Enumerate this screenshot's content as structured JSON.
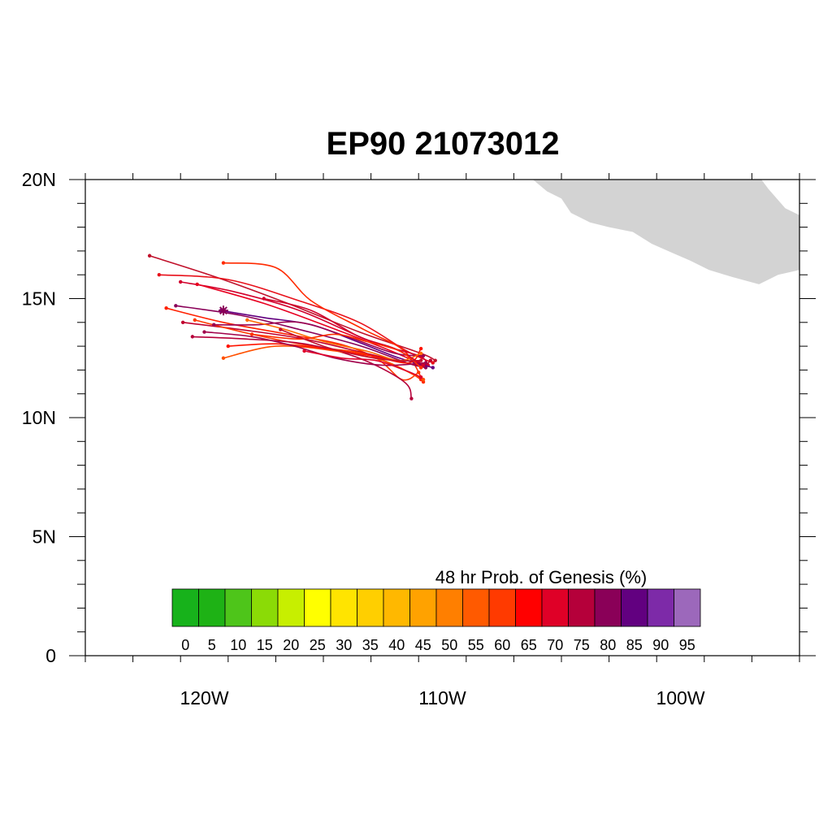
{
  "title": "EP90 21073012",
  "map": {
    "lon_range": [
      -125,
      -95
    ],
    "lat_range": [
      0,
      20
    ],
    "lon_ticks": [
      {
        "value": -120,
        "label": "120W"
      },
      {
        "value": -110,
        "label": "110W"
      },
      {
        "value": -100,
        "label": "100W"
      }
    ],
    "lat_ticks": [
      {
        "value": 0,
        "label": "0"
      },
      {
        "value": 5,
        "label": "5N"
      },
      {
        "value": 10,
        "label": "10N"
      },
      {
        "value": 15,
        "label": "15N"
      },
      {
        "value": 20,
        "label": "20N"
      }
    ],
    "land_color": "#d3d3d3",
    "land_outline": [
      [
        -106.2,
        20.0
      ],
      [
        -105.6,
        19.5
      ],
      [
        -105.0,
        19.2
      ],
      [
        -104.6,
        18.6
      ],
      [
        -103.8,
        18.2
      ],
      [
        -103.0,
        18.0
      ],
      [
        -102.0,
        17.8
      ],
      [
        -101.2,
        17.3
      ],
      [
        -100.3,
        16.9
      ],
      [
        -99.6,
        16.6
      ],
      [
        -98.8,
        16.2
      ],
      [
        -97.8,
        15.9
      ],
      [
        -96.7,
        15.6
      ],
      [
        -95.9,
        16.0
      ],
      [
        -95.0,
        16.2
      ],
      [
        -95.0,
        18.5
      ],
      [
        -95.6,
        18.8
      ],
      [
        -96.3,
        19.6
      ],
      [
        -96.6,
        20.0
      ]
    ],
    "genesis_center": {
      "lon": -119.2,
      "lat": 14.5
    }
  },
  "colorbar": {
    "title": "48 hr Prob. of Genesis (%)",
    "labels": [
      "0",
      "5",
      "10",
      "15",
      "20",
      "25",
      "30",
      "35",
      "40",
      "45",
      "50",
      "55",
      "60",
      "65",
      "70",
      "75",
      "80",
      "85",
      "90",
      "95"
    ],
    "colors": [
      "#17b21b",
      "#1eb215",
      "#4ec51a",
      "#8bdb06",
      "#c7ef00",
      "#ffff00",
      "#ffe400",
      "#ffcf00",
      "#ffb800",
      "#ffa200",
      "#ff7f00",
      "#ff5a00",
      "#ff3a00",
      "#ff0000",
      "#df0027",
      "#b5003a",
      "#8a0058",
      "#620080",
      "#7d2aa8",
      "#9c68bb"
    ]
  },
  "tracks": [
    {
      "color": "#c0102a",
      "points": [
        [
          -122.3,
          16.8
        ],
        [
          -119.5,
          15.9
        ],
        [
          -116.5,
          14.8
        ],
        [
          -113.5,
          13.6
        ],
        [
          -110.9,
          12.7
        ],
        [
          -110.3,
          12.4
        ]
      ]
    },
    {
      "color": "#e8101a",
      "points": [
        [
          -121.9,
          16.0
        ],
        [
          -119.0,
          15.8
        ],
        [
          -116.0,
          14.9
        ],
        [
          -113.5,
          14.0
        ],
        [
          -111.5,
          12.8
        ],
        [
          -110.4,
          12.3
        ]
      ]
    },
    {
      "color": "#ff2a00",
      "points": [
        [
          -119.2,
          16.5
        ],
        [
          -117.0,
          16.3
        ],
        [
          -115.5,
          14.9
        ],
        [
          -113.3,
          13.7
        ],
        [
          -111.6,
          12.8
        ],
        [
          -110.8,
          11.5
        ]
      ]
    },
    {
      "color": "#d2002c",
      "points": [
        [
          -121.0,
          15.7
        ],
        [
          -118.8,
          15.3
        ],
        [
          -116.0,
          14.5
        ],
        [
          -113.0,
          13.2
        ],
        [
          -111.0,
          12.6
        ],
        [
          -110.6,
          12.2
        ]
      ]
    },
    {
      "color": "#e80020",
      "points": [
        [
          -120.3,
          15.6
        ],
        [
          -117.5,
          14.8
        ],
        [
          -115.0,
          13.9
        ],
        [
          -112.4,
          12.9
        ],
        [
          -111.0,
          12.3
        ]
      ]
    },
    {
      "color": "#8a0058",
      "points": [
        [
          -121.2,
          14.7
        ],
        [
          -118.5,
          14.3
        ],
        [
          -116.0,
          13.7
        ],
        [
          -113.4,
          13.0
        ],
        [
          -111.5,
          12.3
        ],
        [
          -110.7,
          12.1
        ]
      ]
    },
    {
      "color": "#ff2000",
      "points": [
        [
          -121.6,
          14.6
        ],
        [
          -119.2,
          14.0
        ],
        [
          -116.5,
          13.5
        ],
        [
          -114.0,
          13.0
        ],
        [
          -111.6,
          12.0
        ],
        [
          -110.9,
          11.6
        ]
      ]
    },
    {
      "color": "#c0002e",
      "points": [
        [
          -120.9,
          14.0
        ],
        [
          -118.5,
          13.7
        ],
        [
          -115.8,
          13.3
        ],
        [
          -113.2,
          12.7
        ],
        [
          -111.0,
          12.2
        ],
        [
          -110.5,
          12.4
        ]
      ]
    },
    {
      "color": "#ff3a00",
      "points": [
        [
          -120.4,
          14.1
        ],
        [
          -118.0,
          13.5
        ],
        [
          -115.5,
          13.0
        ],
        [
          -113.0,
          12.6
        ],
        [
          -111.7,
          11.6
        ],
        [
          -111.0,
          11.9
        ]
      ]
    },
    {
      "color": "#b5003a",
      "points": [
        [
          -120.5,
          13.4
        ],
        [
          -118.2,
          13.3
        ],
        [
          -115.8,
          13.1
        ],
        [
          -113.5,
          12.5
        ],
        [
          -111.6,
          11.5
        ],
        [
          -111.3,
          10.8
        ]
      ]
    },
    {
      "color": "#ff5000",
      "points": [
        [
          -119.2,
          12.5
        ],
        [
          -117.0,
          13.0
        ],
        [
          -114.5,
          12.8
        ],
        [
          -112.5,
          12.4
        ],
        [
          -111.2,
          11.8
        ],
        [
          -110.8,
          11.6
        ]
      ]
    },
    {
      "color": "#620080",
      "points": [
        [
          -119.3,
          14.5
        ],
        [
          -117.5,
          14.2
        ],
        [
          -115.5,
          13.9
        ],
        [
          -113.6,
          13.2
        ],
        [
          -111.8,
          12.5
        ],
        [
          -110.4,
          12.1
        ]
      ]
    },
    {
      "color": "#9b0050",
      "points": [
        [
          -119.6,
          13.9
        ],
        [
          -117.8,
          13.9
        ],
        [
          -116.0,
          14.0
        ],
        [
          -114.0,
          13.4
        ],
        [
          -112.0,
          12.7
        ],
        [
          -110.8,
          12.6
        ]
      ]
    },
    {
      "color": "#ff1400",
      "points": [
        [
          -119.0,
          13.0
        ],
        [
          -117.0,
          13.1
        ],
        [
          -115.0,
          12.9
        ],
        [
          -113.0,
          12.6
        ],
        [
          -111.4,
          12.3
        ],
        [
          -110.9,
          12.9
        ]
      ]
    },
    {
      "color": "#ff6a00",
      "points": [
        [
          -118.2,
          14.1
        ],
        [
          -116.6,
          13.7
        ],
        [
          -115.0,
          13.2
        ],
        [
          -113.2,
          12.8
        ],
        [
          -111.8,
          12.4
        ],
        [
          -110.9,
          12.7
        ]
      ]
    },
    {
      "color": "#d0002a",
      "points": [
        [
          -117.5,
          15.0
        ],
        [
          -115.5,
          14.5
        ],
        [
          -113.5,
          13.4
        ],
        [
          -112.0,
          12.9
        ],
        [
          -110.8,
          12.2
        ]
      ]
    },
    {
      "color": "#a0004a",
      "points": [
        [
          -120.0,
          13.6
        ],
        [
          -118.0,
          13.4
        ],
        [
          -116.2,
          13.0
        ],
        [
          -114.5,
          12.5
        ],
        [
          -112.5,
          12.2
        ],
        [
          -110.7,
          12.3
        ]
      ]
    },
    {
      "color": "#ff3000",
      "points": [
        [
          -118.0,
          13.5
        ],
        [
          -116.0,
          13.3
        ],
        [
          -114.5,
          13.5
        ],
        [
          -113.2,
          13.2
        ],
        [
          -111.8,
          12.8
        ],
        [
          -110.9,
          12.1
        ]
      ]
    },
    {
      "color": "#c21030",
      "points": [
        [
          -116.8,
          13.7
        ],
        [
          -115.0,
          13.0
        ],
        [
          -113.4,
          12.6
        ],
        [
          -112.0,
          12.4
        ],
        [
          -110.9,
          12.4
        ]
      ]
    },
    {
      "color": "#e0002a",
      "points": [
        [
          -115.8,
          12.8
        ],
        [
          -114.2,
          12.5
        ],
        [
          -112.8,
          12.4
        ],
        [
          -111.6,
          12.0
        ],
        [
          -110.9,
          11.7
        ]
      ]
    }
  ]
}
